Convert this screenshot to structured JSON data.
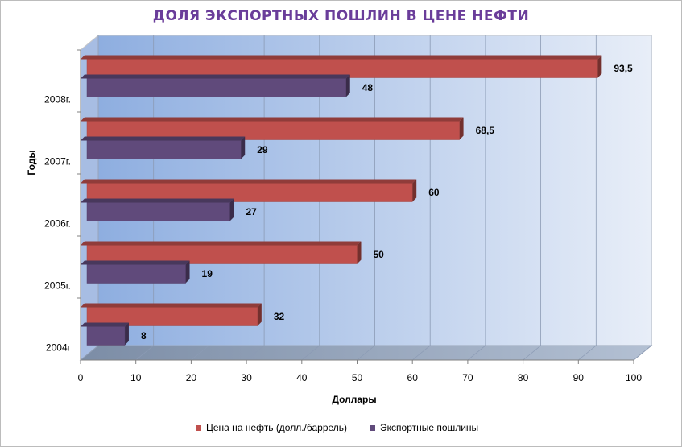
{
  "chart_data": {
    "type": "bar",
    "orientation": "horizontal",
    "title": "ДОЛЯ  ЭКСПОРТНЫХ  ПОШЛИН  В ЦЕНЕ НЕФТИ",
    "xlabel": "Доллары",
    "ylabel": "Годы",
    "categories": [
      "2008г.",
      "2007г.",
      "2006г.",
      "2005г.",
      "2004г"
    ],
    "series": [
      {
        "name": "Цена на нефть (долл./баррель)",
        "values": [
          93.5,
          68.5,
          60,
          50,
          32
        ],
        "labels": [
          "93,5",
          "68,5",
          "60",
          "50",
          "32"
        ],
        "color": "#c0504d"
      },
      {
        "name": "Экспортные пошлины",
        "values": [
          48,
          29,
          27,
          19,
          8
        ],
        "labels": [
          "48",
          "29",
          "27",
          "19",
          "8"
        ],
        "color": "#604a7b"
      }
    ],
    "xlim": [
      0,
      100
    ],
    "xticks": [
      "0",
      "10",
      "20",
      "30",
      "40",
      "50",
      "60",
      "70",
      "80",
      "90",
      "100"
    ],
    "grid": true,
    "legend_position": "bottom"
  }
}
